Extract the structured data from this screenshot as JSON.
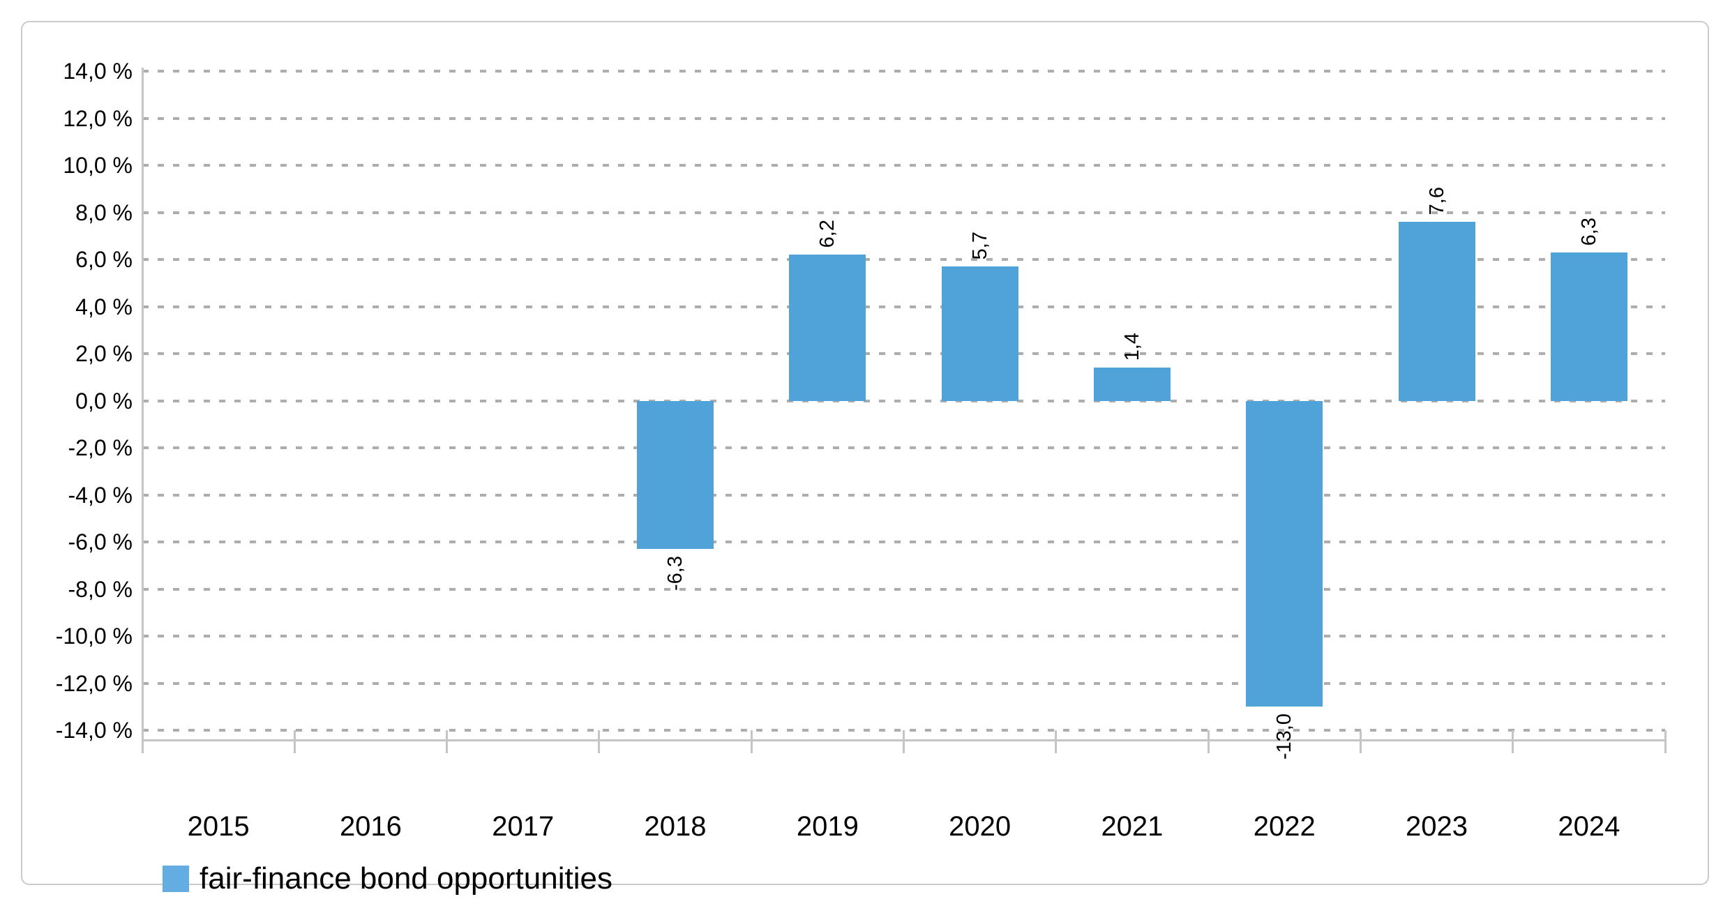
{
  "chart_data": {
    "type": "bar",
    "title": "",
    "categories": [
      "2015",
      "2016",
      "2017",
      "2018",
      "2019",
      "2020",
      "2021",
      "2022",
      "2023",
      "2024"
    ],
    "series": [
      {
        "name": "fair-finance bond opportunities",
        "values": [
          null,
          null,
          null,
          -6.3,
          6.2,
          5.7,
          1.4,
          -13.0,
          7.6,
          6.3
        ]
      }
    ],
    "value_labels": [
      "",
      "",
      "",
      "-6,3",
      "6,2",
      "5,7",
      "1,4",
      "-13,0",
      "7,6",
      "6,3"
    ],
    "xlabel": "",
    "ylabel": "",
    "ylim": [
      -14,
      14
    ],
    "ytick_step": 2,
    "ytick_labels": [
      "14,0 %",
      "12,0 %",
      "10,0 %",
      "8,0 %",
      "6,0 %",
      "4,0 %",
      "2,0 %",
      "0,0 %",
      "-2,0 %",
      "-4,0 %",
      "-6,0 %",
      "-8,0 %",
      "-10,0 %",
      "-12,0 %",
      "-14,0 %"
    ],
    "grid": "horizontal-dashed",
    "legend_position": "bottom-left",
    "decimal_separator": ","
  },
  "legend": {
    "label": "fair-finance bond opportunities"
  },
  "colors": {
    "bar": "#4fa3d9",
    "legend_swatch": "#63ade3",
    "gridline": "#adadad",
    "axis": "#c5c5c5",
    "text": "#000000",
    "card_border": "#cacaca",
    "background": "#ffffff"
  }
}
